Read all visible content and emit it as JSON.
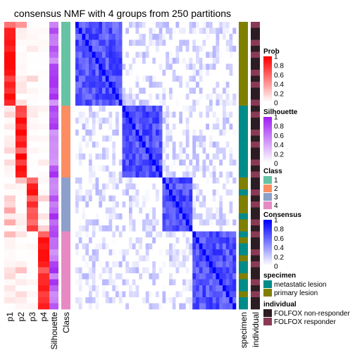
{
  "chart_data": {
    "type": "heatmap",
    "title": "consensus NMF with 4 groups from 250 partitions",
    "n_samples": 48,
    "group_sizes": [
      14,
      12,
      9,
      13
    ],
    "columns": {
      "prob": [
        "p1",
        "p2",
        "p3",
        "p4"
      ],
      "silhouette": "Silhouette",
      "class": "Class",
      "specimen": "specimen",
      "individual": "individual"
    },
    "colors": {
      "prob_high": "#ff0000",
      "silhouette_high": "#a020f0",
      "consensus_high": "#0000ff",
      "class": [
        "#66c2a5",
        "#fc8d62",
        "#8da0cb",
        "#e78ac3"
      ],
      "specimen": [
        "#008b8b",
        "#808000"
      ],
      "individual": [
        "#2b1d23",
        "#8b3a55"
      ]
    },
    "legends": [
      {
        "title": "Prob",
        "type": "gradient",
        "color": "#ff0000",
        "ticks": [
          "1",
          "0.8",
          "0.6",
          "0.4",
          "0.2",
          "0"
        ]
      },
      {
        "title": "Silhouette",
        "type": "gradient",
        "color": "#a020f0",
        "ticks": [
          "1",
          "0.8",
          "0.6",
          "0.4",
          "0.2",
          "0"
        ]
      },
      {
        "title": "Class",
        "type": "discrete",
        "labels": [
          "1",
          "2",
          "3",
          "4"
        ]
      },
      {
        "title": "Consensus",
        "type": "gradient",
        "color": "#0000ff",
        "ticks": [
          "1",
          "0.8",
          "0.6",
          "0.4",
          "0.2",
          "0"
        ]
      },
      {
        "title": "specimen",
        "type": "discrete",
        "labels": [
          "metastatic lesion",
          "primary lesion"
        ]
      },
      {
        "title": "individual",
        "type": "discrete",
        "labels": [
          "FOLFOX non-responder",
          "FOLFOX responder"
        ]
      }
    ]
  }
}
